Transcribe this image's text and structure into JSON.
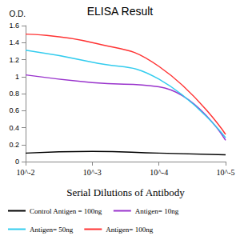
{
  "chart_data": {
    "type": "line",
    "title": "ELISA Result",
    "x_label": "Serial Dilutions of Antibody",
    "y_label": "O.D.",
    "x": [
      0.01,
      0.001,
      0.0001,
      1e-05
    ],
    "series": [
      {
        "name": "Control Antigen = 100ng",
        "color": "#000000",
        "values": [
          0.1,
          0.12,
          0.1,
          0.08
        ]
      },
      {
        "name": "Antigen= 10ng",
        "color": "#9933cc",
        "values": [
          1.02,
          0.93,
          0.88,
          0.25
        ]
      },
      {
        "name": "Antigen= 50ng",
        "color": "#33ccee",
        "values": [
          1.31,
          1.17,
          0.97,
          0.28
        ]
      },
      {
        "name": "Antigen= 100ng",
        "color": "#ff3333",
        "values": [
          1.5,
          1.4,
          1.12,
          0.32
        ]
      }
    ],
    "xlim": [
      0.01,
      1e-05
    ],
    "xticks": [
      {
        "value": 0.01,
        "label": "10^-2"
      },
      {
        "value": 0.001,
        "label": "10^-3"
      },
      {
        "value": 0.0001,
        "label": "10^-4"
      },
      {
        "value": 1e-05,
        "label": "10^-5"
      }
    ],
    "ylim": [
      0,
      1.6
    ],
    "yticks": [
      0,
      0.2,
      0.4,
      0.6,
      0.8,
      1,
      1.2,
      1.4,
      1.6
    ],
    "log": "x",
    "grid": false,
    "legend": "bottom",
    "marker": "none"
  }
}
